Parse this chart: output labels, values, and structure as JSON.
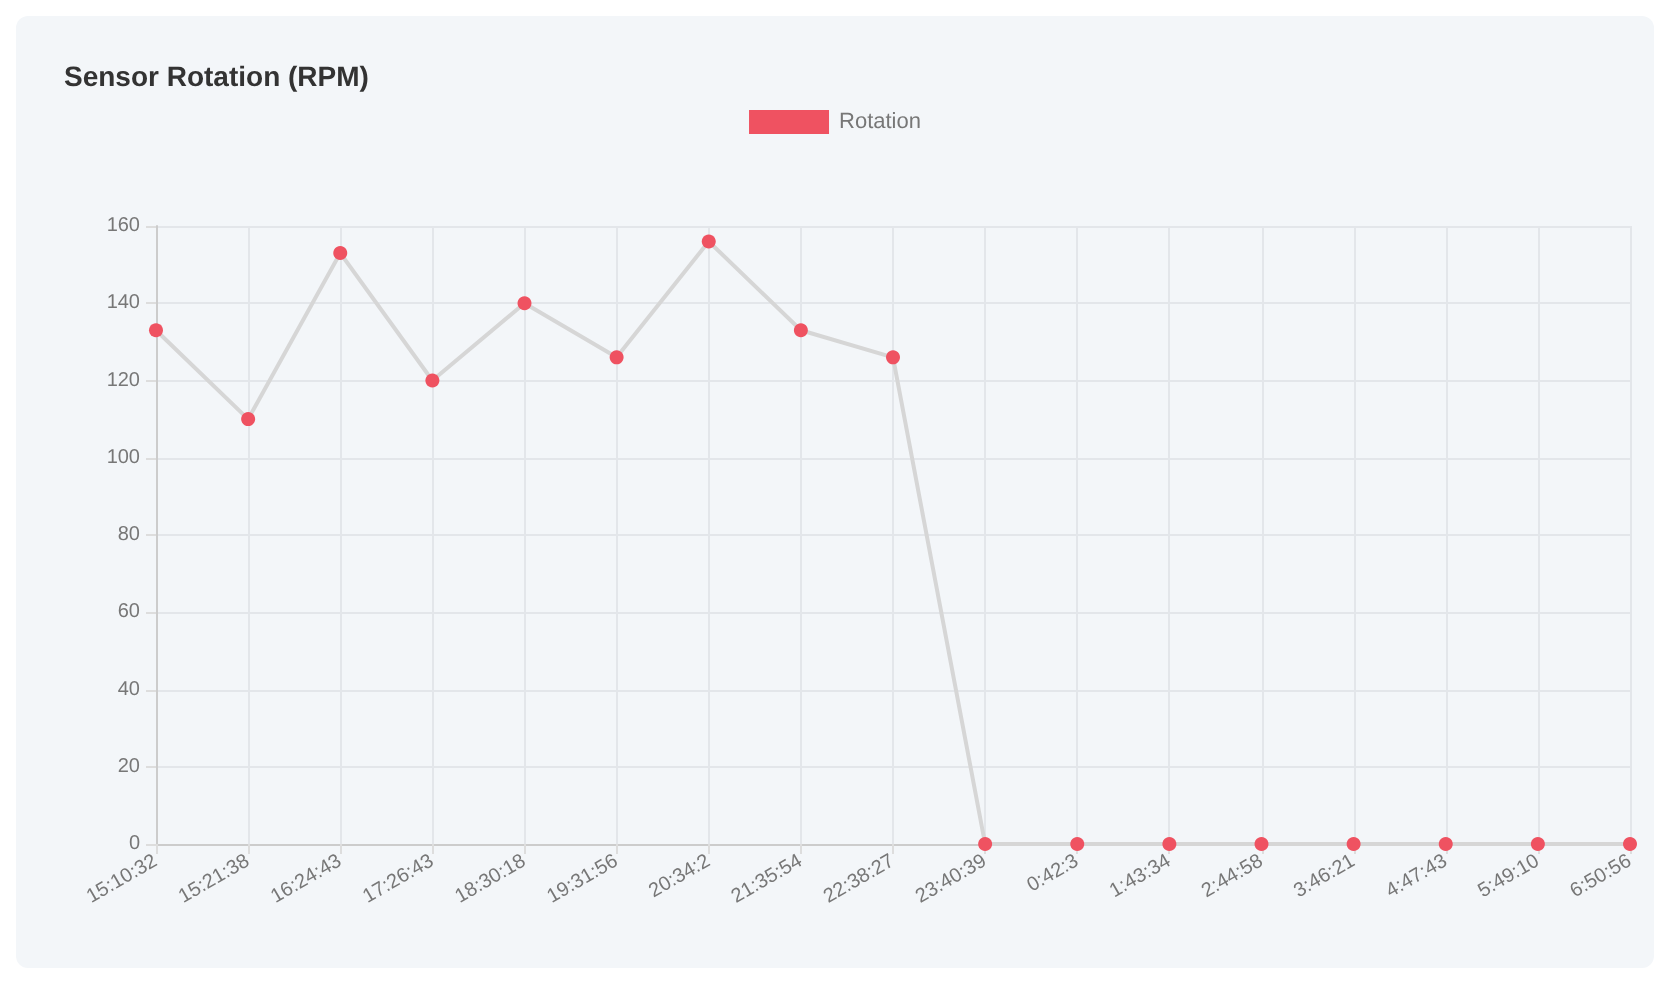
{
  "chart_data": {
    "type": "line",
    "title": "Sensor Rotation (RPM)",
    "categories": [
      "15:10:32",
      "15:21:38",
      "16:24:43",
      "17:26:43",
      "18:30:18",
      "19:31:56",
      "20:34:2",
      "21:35:54",
      "22:38:27",
      "23:40:39",
      "0:42:3",
      "1:43:34",
      "2:44:58",
      "3:46:21",
      "4:47:43",
      "5:49:10",
      "6:50:56"
    ],
    "series": [
      {
        "name": "Rotation",
        "color": "#ef5261",
        "values": [
          133,
          110,
          153,
          120,
          140,
          126,
          156,
          133,
          126,
          0,
          0,
          0,
          0,
          0,
          0,
          0,
          0
        ]
      }
    ],
    "ylim": [
      0,
      160
    ],
    "yticks": [
      0,
      20,
      40,
      60,
      80,
      100,
      120,
      140,
      160
    ],
    "grid": true,
    "legend": "top",
    "marker": "circle"
  }
}
